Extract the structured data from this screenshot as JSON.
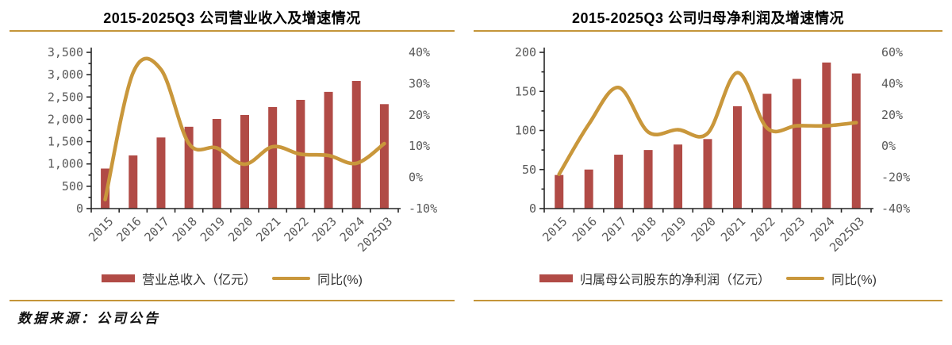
{
  "colors": {
    "bar": "#B14B46",
    "line": "#C9973B",
    "accent_rule": "#C49539",
    "axis": "#262626",
    "tick_label": "#595959",
    "legend_text": "#333333",
    "title_text": "#000000"
  },
  "footer": {
    "source_label": "数据来源：公司公告"
  },
  "charts": [
    {
      "title": "2015-2025Q3 公司营业收入及增速情况",
      "legend": [
        {
          "swatch": "bar",
          "label": "营业总收入（亿元）"
        },
        {
          "swatch": "line",
          "label": "同比(%)"
        }
      ],
      "chart_data": {
        "type": "bar",
        "subtype": "bar+line combo, dual axis",
        "categories": [
          "2015",
          "2016",
          "2017",
          "2018",
          "2019",
          "2020",
          "2021",
          "2022",
          "2023",
          "2024",
          "2025Q3"
        ],
        "series": [
          {
            "name": "营业总收入（亿元）",
            "type": "bar",
            "axis": "left",
            "values": [
              897,
              1191,
              1593,
              1833,
              2008,
              2097,
              2275,
              2435,
              2614,
              2860,
              2340
            ]
          },
          {
            "name": "同比(%)",
            "type": "line",
            "axis": "right",
            "values": [
              -7.1,
              33.5,
              34.5,
              10.8,
              9.4,
              4.2,
              9.8,
              7.4,
              7.0,
              4.5,
              10.8
            ]
          }
        ],
        "left_axis": {
          "min": 0,
          "max": 3500,
          "major_step": 500,
          "minor_step": 250,
          "tick_labels": [
            "0",
            "500",
            "1,000",
            "1,500",
            "2,000",
            "2,500",
            "3,000",
            "3,500"
          ]
        },
        "right_axis": {
          "min": -10,
          "max": 40,
          "major_step": 10,
          "tick_labels": [
            "-10%",
            "0%",
            "10%",
            "20%",
            "30%",
            "40%"
          ]
        },
        "grid": "off",
        "legend_position": "bottom"
      }
    },
    {
      "title": "2015-2025Q3 公司归母净利润及增速情况",
      "legend": [
        {
          "swatch": "bar",
          "label": "归属母公司股东的净利润（亿元）"
        },
        {
          "swatch": "line",
          "label": "同比(%)"
        }
      ],
      "chart_data": {
        "type": "bar",
        "subtype": "bar+line combo, dual axis",
        "categories": [
          "2015",
          "2016",
          "2017",
          "2018",
          "2019",
          "2020",
          "2021",
          "2022",
          "2023",
          "2024",
          "2025Q3"
        ],
        "series": [
          {
            "name": "归属母公司股东的净利润（亿元）",
            "type": "bar",
            "axis": "left",
            "values": [
              43,
              50,
              69,
              75,
              82,
              89,
              131,
              147,
              166,
              187,
              173
            ]
          },
          {
            "name": "同比(%)",
            "type": "line",
            "axis": "right",
            "values": [
              -18,
              14,
              37.5,
              9,
              10.5,
              8.2,
              47,
              11.5,
              13,
              13,
              15
            ]
          }
        ],
        "left_axis": {
          "min": 0,
          "max": 200,
          "major_step": 50,
          "minor_step": 25,
          "tick_labels": [
            "0",
            "50",
            "100",
            "150",
            "200"
          ]
        },
        "right_axis": {
          "min": -40,
          "max": 60,
          "major_step": 20,
          "tick_labels": [
            "-40%",
            "-20%",
            "0%",
            "20%",
            "40%",
            "60%"
          ]
        },
        "grid": "off",
        "legend_position": "bottom"
      }
    }
  ]
}
